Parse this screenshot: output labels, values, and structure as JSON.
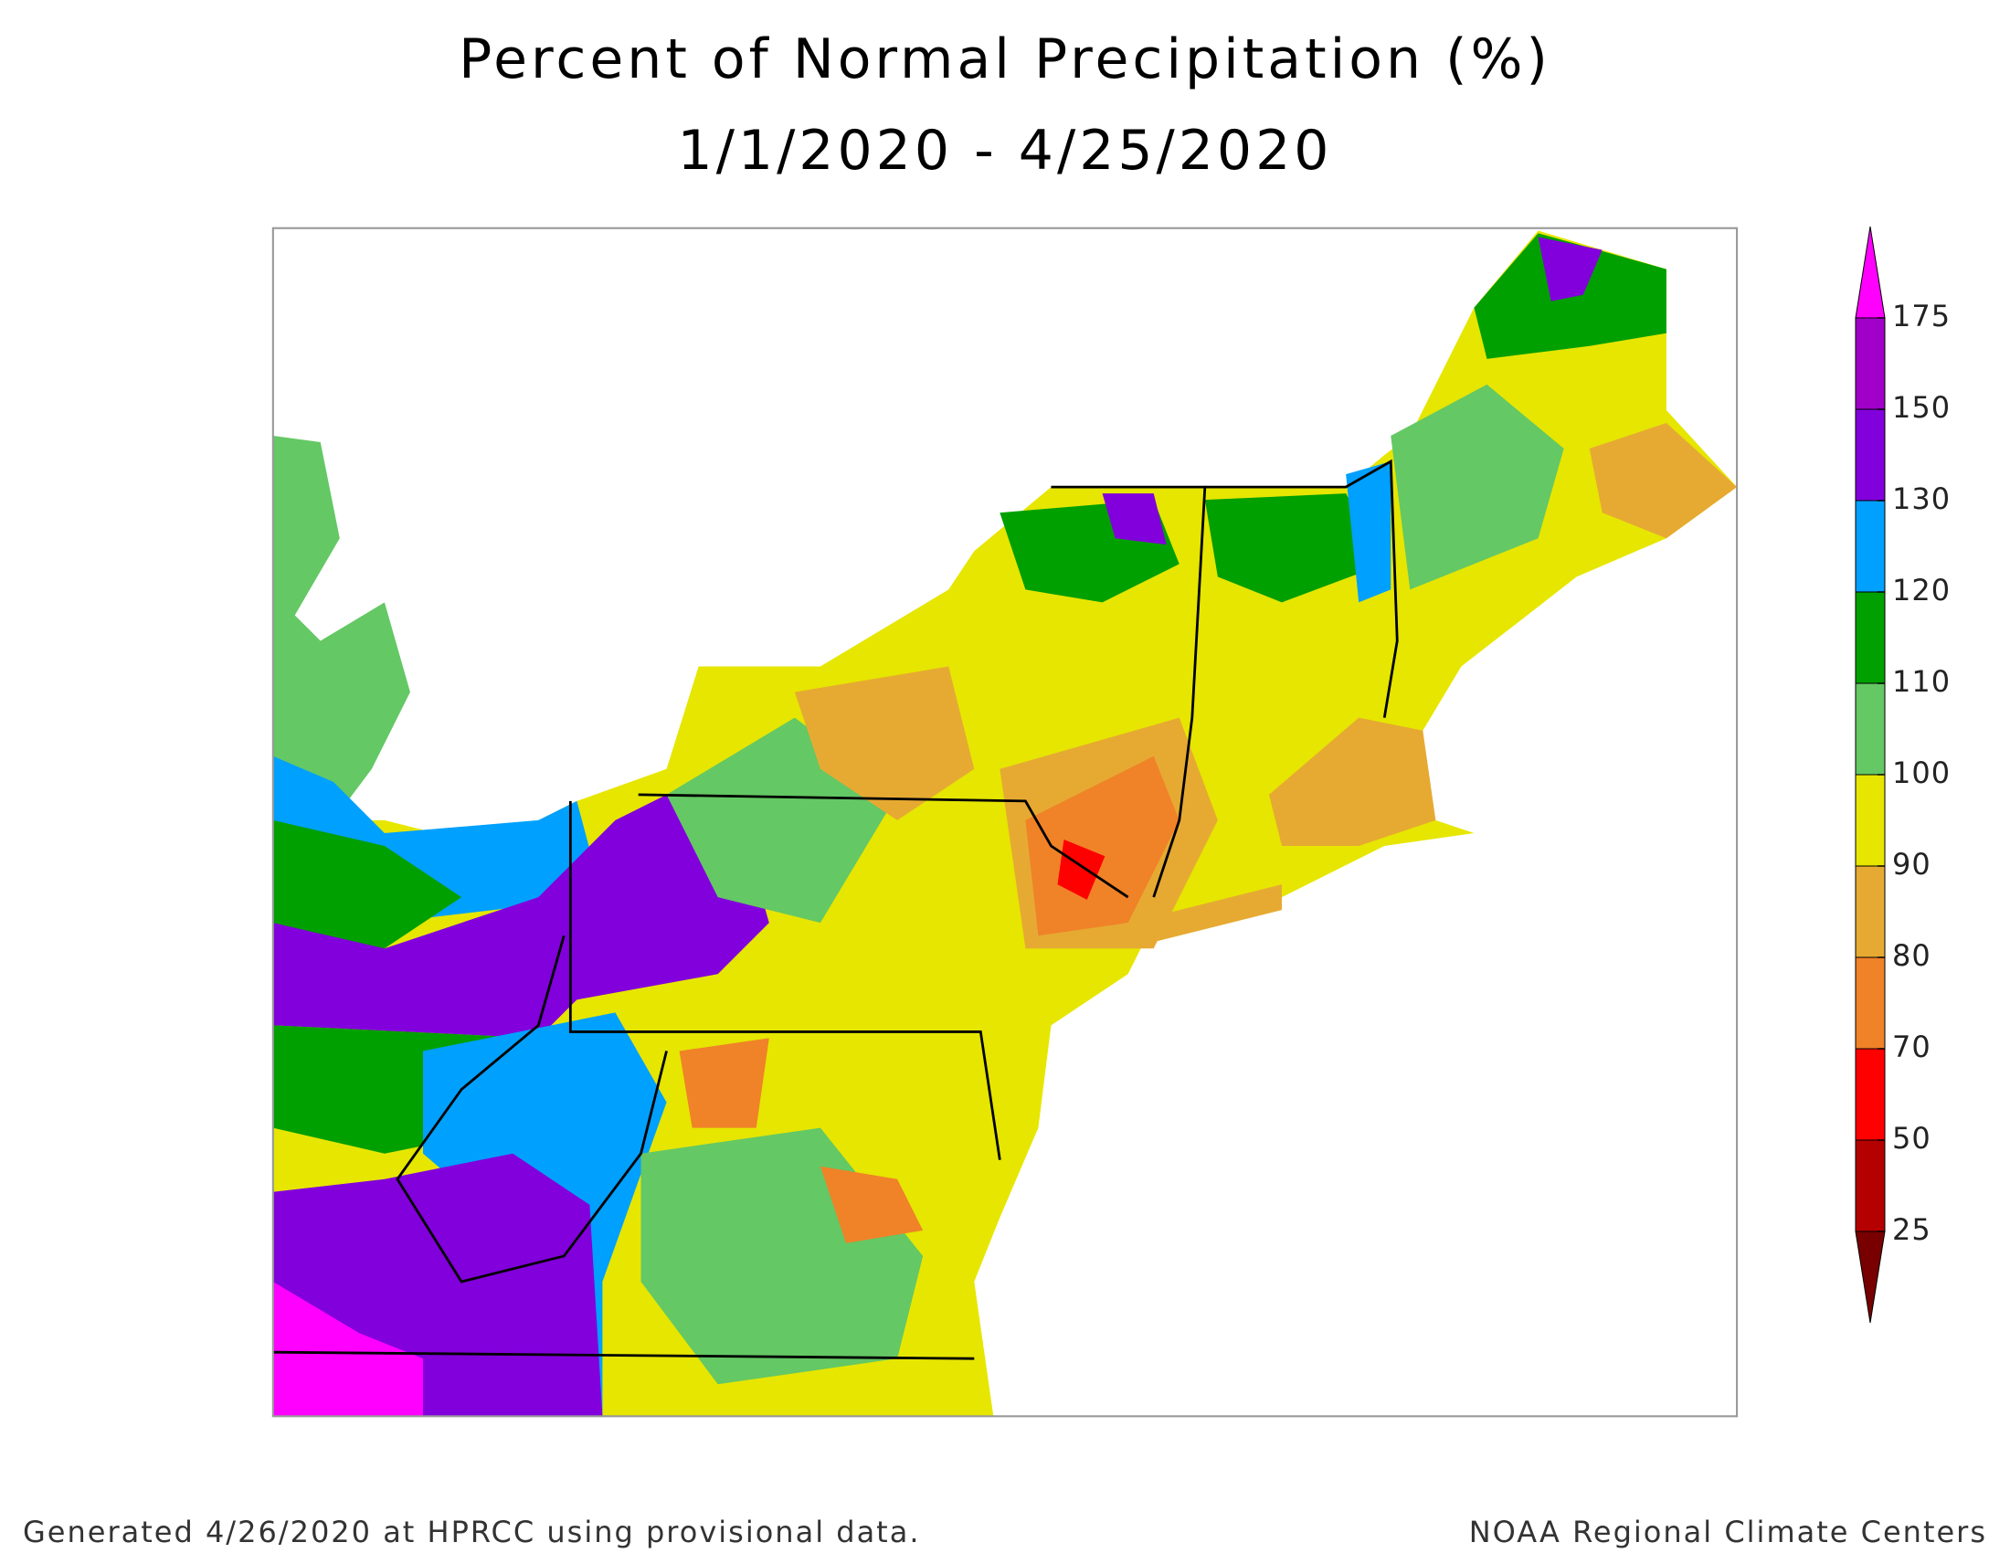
{
  "title": "Percent of Normal Precipitation (%)",
  "subtitle": "1/1/2020 - 4/25/2020",
  "legend": {
    "ticks": [
      25,
      50,
      70,
      80,
      90,
      100,
      110,
      120,
      130,
      150,
      175
    ],
    "colors": [
      "#b40000",
      "#ff0000",
      "#f08228",
      "#e6aa32",
      "#e6e600",
      "#64c864",
      "#00a000",
      "#00a0ff",
      "#8200dc",
      "#a000c8"
    ],
    "under_color": "#780000",
    "over_color": "#ff00ff"
  },
  "footer": {
    "left": "Generated 4/26/2020 at HPRCC using provisional data.",
    "right": "NOAA Regional Climate Centers"
  }
}
